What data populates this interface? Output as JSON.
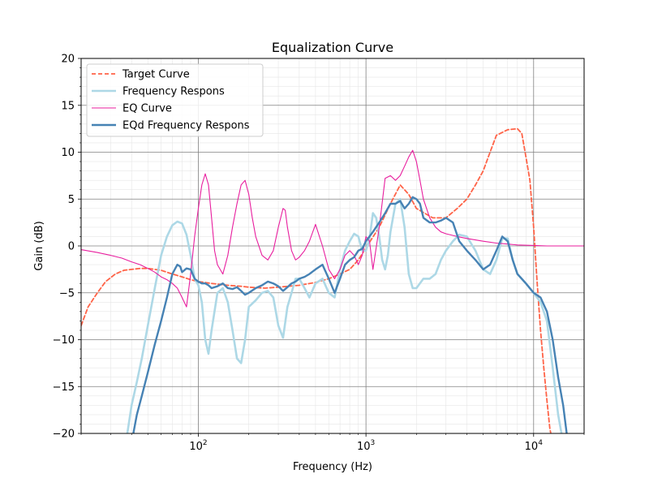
{
  "chart_data": {
    "type": "line",
    "title": "Equalization Curve",
    "xlabel": "Frequency (Hz)",
    "ylabel": "Gain (dB)",
    "xscale": "log",
    "xlim": [
      20,
      20000
    ],
    "ylim": [
      -20,
      20
    ],
    "grid": "major and minor",
    "legend_position": "upper-left",
    "x_tick_labels": [
      {
        "value": 100,
        "base": "10",
        "exp": "2"
      },
      {
        "value": 1000,
        "base": "10",
        "exp": "3"
      },
      {
        "value": 10000,
        "base": "10",
        "exp": "4"
      }
    ],
    "y_tick_labels": [
      {
        "value": 20,
        "label": "20"
      },
      {
        "value": 15,
        "label": "15"
      },
      {
        "value": 10,
        "label": "10"
      },
      {
        "value": 5,
        "label": "5"
      },
      {
        "value": 0,
        "label": "0"
      },
      {
        "value": -5,
        "label": "−5"
      },
      {
        "value": -10,
        "label": "−10"
      },
      {
        "value": -15,
        "label": "−15"
      },
      {
        "value": -20,
        "label": "−20"
      }
    ],
    "series": [
      {
        "name": "Target Curve",
        "color": "#ff6347",
        "style": "dashed",
        "x": [
          20,
          22,
          25,
          28,
          32,
          36,
          40,
          45,
          50,
          55,
          60,
          70,
          80,
          90,
          100,
          120,
          150,
          180,
          200,
          250,
          300,
          400,
          500,
          600,
          700,
          800,
          900,
          1000,
          1200,
          1400,
          1600,
          1800,
          2000,
          2500,
          3000,
          3500,
          4000,
          4500,
          5000,
          5500,
          6000,
          7000,
          8000,
          8500,
          9000,
          9500,
          10000,
          10500,
          11000,
          11500,
          12000,
          12500,
          13000
        ],
        "y": [
          -8.5,
          -6.5,
          -5,
          -3.8,
          -3,
          -2.6,
          -2.5,
          -2.4,
          -2.4,
          -2.5,
          -2.6,
          -3,
          -3.3,
          -3.6,
          -3.8,
          -4,
          -4.2,
          -4.3,
          -4.4,
          -4.5,
          -4.4,
          -4.2,
          -3.9,
          -3.5,
          -3,
          -2.5,
          -1.5,
          -0.2,
          2,
          4.5,
          6.5,
          5.5,
          4,
          3,
          3,
          4,
          5,
          6.5,
          8,
          10,
          11.8,
          12.4,
          12.5,
          12,
          9.5,
          7,
          2,
          -4,
          -9,
          -13,
          -16.5,
          -19.5,
          -21
        ]
      },
      {
        "name": "Frequency Respons",
        "color": "#add8e6",
        "style": "solid",
        "x": [
          37,
          40,
          43,
          46,
          50,
          55,
          60,
          65,
          70,
          75,
          80,
          85,
          90,
          95,
          100,
          105,
          110,
          115,
          120,
          130,
          140,
          150,
          160,
          170,
          180,
          190,
          200,
          220,
          240,
          260,
          280,
          300,
          320,
          340,
          360,
          380,
          400,
          430,
          460,
          500,
          550,
          600,
          650,
          700,
          750,
          800,
          850,
          900,
          950,
          1000,
          1050,
          1100,
          1150,
          1200,
          1250,
          1300,
          1350,
          1400,
          1500,
          1600,
          1700,
          1800,
          1900,
          2000,
          2200,
          2400,
          2600,
          2800,
          3000,
          3300,
          3600,
          4000,
          4500,
          5000,
          5500,
          6000,
          6500,
          7000,
          7500,
          8000,
          9000,
          10000,
          11000,
          12000,
          13000,
          14000,
          15000
        ],
        "y": [
          -21,
          -17,
          -14.5,
          -12,
          -8.5,
          -4.5,
          -1,
          1,
          2.2,
          2.6,
          2.4,
          1.2,
          -1,
          -3.5,
          -4.2,
          -6,
          -10,
          -11.5,
          -9,
          -5,
          -4.5,
          -6,
          -9,
          -12,
          -12.5,
          -10,
          -6.5,
          -5.8,
          -5,
          -4.8,
          -5.5,
          -8.5,
          -9.8,
          -6.5,
          -5,
          -3.5,
          -3.5,
          -4.5,
          -5.5,
          -4,
          -3.5,
          -5,
          -5.5,
          -2.5,
          -0.5,
          0.5,
          1.3,
          1,
          -0.5,
          -0.5,
          0.8,
          3.5,
          3,
          1,
          -1.5,
          -2.5,
          -1,
          1.5,
          4.5,
          5,
          2,
          -3,
          -4.5,
          -4.5,
          -3.5,
          -3.5,
          -3,
          -1.5,
          -0.5,
          0.5,
          1.2,
          1,
          -0.5,
          -2.5,
          -3,
          -1.5,
          0.8,
          0.8,
          -1.5,
          -3,
          -4,
          -5,
          -6,
          -8,
          -13,
          -18,
          -21
        ]
      },
      {
        "name": "EQ Curve",
        "color": "#e81e9e",
        "style": "solid",
        "x": [
          20,
          25,
          30,
          35,
          40,
          45,
          50,
          55,
          60,
          65,
          70,
          75,
          80,
          85,
          90,
          95,
          100,
          105,
          110,
          115,
          120,
          125,
          130,
          140,
          150,
          160,
          170,
          180,
          190,
          200,
          210,
          220,
          240,
          260,
          280,
          300,
          320,
          330,
          340,
          360,
          380,
          400,
          430,
          460,
          500,
          550,
          600,
          650,
          700,
          750,
          800,
          850,
          900,
          950,
          1000,
          1050,
          1100,
          1200,
          1300,
          1400,
          1500,
          1600,
          1700,
          1800,
          1900,
          2000,
          2100,
          2200,
          2400,
          2600,
          2800,
          3000,
          3500,
          4000,
          5000,
          6000,
          7000,
          8000,
          10000,
          12000,
          15000,
          20000
        ],
        "y": [
          -0.4,
          -0.7,
          -1,
          -1.3,
          -1.7,
          -2,
          -2.4,
          -2.8,
          -3.3,
          -3.6,
          -4,
          -4.5,
          -5.5,
          -6.5,
          -3,
          1,
          4,
          6.5,
          7.7,
          6.5,
          3,
          -0.5,
          -2,
          -3,
          -1,
          2,
          4.5,
          6.5,
          7,
          5.5,
          3,
          1,
          -1,
          -1.5,
          -0.5,
          2,
          4,
          3.8,
          2,
          -0.5,
          -1.5,
          -1.2,
          -0.5,
          0.5,
          2.3,
          0,
          -2.5,
          -3.5,
          -2.5,
          -1,
          -0.5,
          -1,
          -2,
          -1,
          1,
          0.5,
          -2.5,
          2,
          7.2,
          7.5,
          7,
          7.5,
          8.5,
          9.5,
          10.2,
          9,
          7,
          5,
          3,
          2,
          1.5,
          1.3,
          1,
          0.8,
          0.5,
          0.3,
          0.2,
          0.1,
          0.05,
          0,
          0,
          0
        ]
      },
      {
        "name": "EQd Frequency Respons",
        "color": "#4682b4",
        "style": "solid",
        "x": [
          40,
          43,
          46,
          50,
          55,
          60,
          65,
          70,
          75,
          78,
          80,
          85,
          90,
          95,
          100,
          105,
          110,
          115,
          120,
          130,
          140,
          150,
          160,
          170,
          180,
          190,
          200,
          220,
          240,
          260,
          280,
          300,
          320,
          340,
          360,
          380,
          400,
          430,
          460,
          500,
          550,
          600,
          650,
          700,
          750,
          800,
          850,
          900,
          950,
          1000,
          1100,
          1200,
          1300,
          1400,
          1500,
          1600,
          1700,
          1800,
          1900,
          2000,
          2100,
          2200,
          2400,
          2600,
          2800,
          3000,
          3300,
          3600,
          4000,
          4500,
          5000,
          5500,
          6000,
          6500,
          7000,
          7500,
          8000,
          9000,
          10000,
          11000,
          12000,
          13000,
          14000,
          15000,
          16000
        ],
        "y": [
          -21,
          -18,
          -16,
          -13.5,
          -10.5,
          -8,
          -5.5,
          -3,
          -2,
          -2.2,
          -2.8,
          -2.4,
          -2.5,
          -3.5,
          -3.8,
          -4,
          -4,
          -4.2,
          -4.5,
          -4.3,
          -4,
          -4.5,
          -4.6,
          -4.4,
          -4.8,
          -5.2,
          -5,
          -4.5,
          -4.2,
          -3.8,
          -4,
          -4.3,
          -4.8,
          -4.4,
          -4,
          -3.8,
          -3.5,
          -3.3,
          -3,
          -2.5,
          -2,
          -3.5,
          -5,
          -3.5,
          -2,
          -1.5,
          -1.2,
          -0.5,
          -0.3,
          0.5,
          1.5,
          2.5,
          3.5,
          4.5,
          4.5,
          4.8,
          4,
          4.5,
          5.2,
          5,
          4.5,
          3,
          2.5,
          2.5,
          2.7,
          3,
          2.5,
          0.5,
          -0.5,
          -1.5,
          -2.5,
          -2,
          -0.5,
          1,
          0.5,
          -1.5,
          -3,
          -4,
          -5,
          -5.5,
          -7,
          -10,
          -14,
          -17,
          -21
        ]
      }
    ]
  }
}
